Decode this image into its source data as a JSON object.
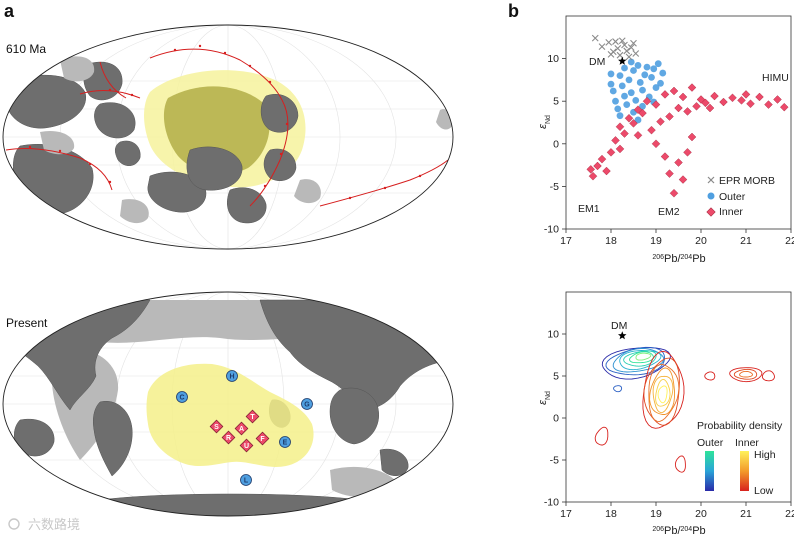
{
  "panels": {
    "a": "a",
    "b": "b",
    "map_top_label": "610 Ma",
    "map_bottom_label": "Present"
  },
  "markers": [
    {
      "code": "C",
      "group": "outer"
    },
    {
      "code": "H",
      "group": "outer"
    },
    {
      "code": "G",
      "group": "outer"
    },
    {
      "code": "L",
      "group": "outer"
    },
    {
      "code": "E",
      "group": "outer"
    },
    {
      "code": "S",
      "group": "inner"
    },
    {
      "code": "T",
      "group": "inner"
    },
    {
      "code": "R",
      "group": "inner"
    },
    {
      "code": "A",
      "group": "inner"
    },
    {
      "code": "U",
      "group": "inner"
    },
    {
      "code": "F",
      "group": "inner"
    }
  ],
  "colors": {
    "outer": "#4f9fe0",
    "inner": "#ec4a6a",
    "morb": "#8a8a8a",
    "lip": "#f4f08a",
    "land_dark": "#6e6e6e",
    "land_light": "#b9b9b9",
    "trench": "#d61f1f"
  },
  "chart_data": [
    {
      "type": "scatter",
      "xlabel_pre": "206",
      "xlabel_mid": "Pb/",
      "xlabel_sup2": "204",
      "xlabel_post": "Pb",
      "ylabel_sym": "ε",
      "ylabel_sub": "Nd",
      "xlim": [
        17,
        22
      ],
      "ylim": [
        -10,
        15
      ],
      "xticks": [
        "17",
        "18",
        "19",
        "20",
        "21",
        "22"
      ],
      "yticks": [
        "-10",
        "-5",
        "0",
        "5",
        "10"
      ],
      "legend": [
        {
          "label": "EPR MORB",
          "marker": "x"
        },
        {
          "label": "Outer",
          "marker": "circle"
        },
        {
          "label": "Inner",
          "marker": "diamond"
        }
      ],
      "annotations": [
        "DM",
        "HIMU",
        "EM1",
        "EM2"
      ],
      "series": [
        {
          "name": "EPR MORB",
          "points": [
            [
              17.65,
              12.4
            ],
            [
              17.8,
              11.4
            ],
            [
              17.95,
              11.9
            ],
            [
              18.05,
              10.8
            ],
            [
              18.15,
              11.2
            ],
            [
              18.2,
              10.4
            ],
            [
              18.3,
              11.6
            ],
            [
              18.35,
              10.9
            ],
            [
              18.45,
              11.3
            ],
            [
              18.55,
              10.6
            ],
            [
              18.1,
              12.0
            ],
            [
              18.25,
              12.1
            ],
            [
              18.4,
              10.2
            ],
            [
              18.5,
              11.8
            ],
            [
              18.0,
              10.5
            ]
          ]
        },
        {
          "name": "Outer",
          "points": [
            [
              18.0,
              7.0
            ],
            [
              18.05,
              6.2
            ],
            [
              18.1,
              5.0
            ],
            [
              18.15,
              4.1
            ],
            [
              18.2,
              3.3
            ],
            [
              18.25,
              6.8
            ],
            [
              18.3,
              5.6
            ],
            [
              18.35,
              4.6
            ],
            [
              18.4,
              7.5
            ],
            [
              18.45,
              6.0
            ],
            [
              18.5,
              8.6
            ],
            [
              18.55,
              5.1
            ],
            [
              18.6,
              9.2
            ],
            [
              18.65,
              7.2
            ],
            [
              18.7,
              6.3
            ],
            [
              18.75,
              8.1
            ],
            [
              18.8,
              9.0
            ],
            [
              18.85,
              5.5
            ],
            [
              18.9,
              7.8
            ],
            [
              18.95,
              8.8
            ],
            [
              19.0,
              6.6
            ],
            [
              19.05,
              9.4
            ],
            [
              19.1,
              7.1
            ],
            [
              18.3,
              8.9
            ],
            [
              18.45,
              9.6
            ],
            [
              18.6,
              2.8
            ],
            [
              18.7,
              4.4
            ],
            [
              18.2,
              8.0
            ],
            [
              18.0,
              8.2
            ],
            [
              18.95,
              4.9
            ],
            [
              19.15,
              8.3
            ],
            [
              18.5,
              3.7
            ]
          ]
        },
        {
          "name": "Inner",
          "points": [
            [
              17.55,
              -3.0
            ],
            [
              17.6,
              -3.8
            ],
            [
              17.7,
              -2.6
            ],
            [
              17.8,
              -1.8
            ],
            [
              17.9,
              -3.2
            ],
            [
              18.0,
              -1.0
            ],
            [
              18.1,
              0.4
            ],
            [
              18.2,
              2.0
            ],
            [
              18.3,
              1.2
            ],
            [
              18.4,
              3.0
            ],
            [
              18.5,
              2.4
            ],
            [
              18.6,
              4.0
            ],
            [
              18.7,
              3.6
            ],
            [
              18.8,
              5.0
            ],
            [
              18.9,
              1.6
            ],
            [
              19.0,
              4.6
            ],
            [
              19.1,
              2.6
            ],
            [
              19.2,
              5.8
            ],
            [
              19.3,
              3.2
            ],
            [
              19.4,
              6.2
            ],
            [
              19.5,
              4.2
            ],
            [
              19.6,
              5.5
            ],
            [
              19.7,
              3.8
            ],
            [
              19.8,
              6.6
            ],
            [
              19.9,
              4.4
            ],
            [
              20.0,
              5.2
            ],
            [
              20.1,
              4.8
            ],
            [
              20.3,
              5.6
            ],
            [
              20.5,
              4.9
            ],
            [
              20.7,
              5.4
            ],
            [
              20.9,
              5.1
            ],
            [
              21.1,
              4.7
            ],
            [
              21.3,
              5.5
            ],
            [
              21.5,
              4.6
            ],
            [
              21.7,
              5.2
            ],
            [
              21.85,
              4.3
            ],
            [
              19.2,
              -1.5
            ],
            [
              19.3,
              -3.5
            ],
            [
              19.4,
              -5.8
            ],
            [
              19.5,
              -2.2
            ],
            [
              19.6,
              -4.2
            ],
            [
              19.7,
              -1.0
            ],
            [
              18.2,
              -0.6
            ],
            [
              18.6,
              1.0
            ],
            [
              19.0,
              0.0
            ],
            [
              19.8,
              0.8
            ],
            [
              20.2,
              4.2
            ],
            [
              21.0,
              5.8
            ]
          ]
        }
      ]
    },
    {
      "type": "density",
      "xlabel_pre": "206",
      "xlabel_mid": "Pb/",
      "xlabel_sup2": "204",
      "xlabel_post": "Pb",
      "ylabel_sym": "ε",
      "ylabel_sub": "Nd",
      "xlim": [
        17,
        22
      ],
      "ylim": [
        -10,
        15
      ],
      "xticks": [
        "17",
        "18",
        "19",
        "20",
        "21",
        "22"
      ],
      "yticks": [
        "-10",
        "-5",
        "0",
        "5",
        "10"
      ],
      "annotations": [
        "DM"
      ],
      "legend_title": "Probability density",
      "legend_outer": "Outer",
      "legend_inner": "Inner",
      "legend_high": "High",
      "legend_low": "Low",
      "dm_point": [
        18.25,
        9.8
      ],
      "outer_center": [
        18.55,
        6.6
      ],
      "inner_center": [
        19.15,
        3.2
      ]
    }
  ],
  "watermark": "六数路境"
}
